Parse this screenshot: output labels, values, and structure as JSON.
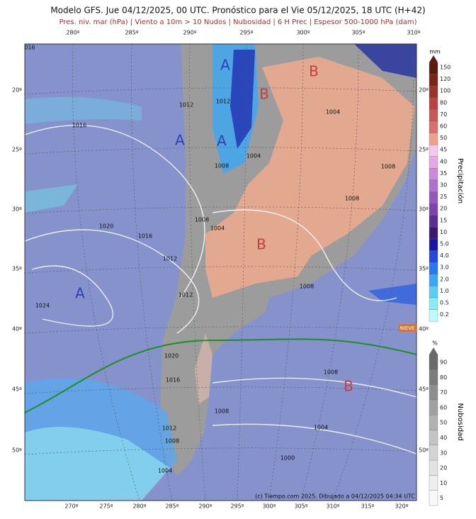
{
  "header": {
    "title": "Modelo GFS. Jue 04/12/2025, 00 UTC. Pronóstico para el Vie 05/12/2025, 18 UTC (H+42)",
    "subtitle": "Pres. niv. mar (hPa) | Viento a 10m > 10 Nudos | Nubosidad | 6 H Prec | Espesor 500-1000 hPa (dam)"
  },
  "map": {
    "lon_top": [
      "280º",
      "285º",
      "290º",
      "295º",
      "300º",
      "305º",
      "310º"
    ],
    "lon_bottom": [
      "270º",
      "275º",
      "280º",
      "285º",
      "290º",
      "295º",
      "300º",
      "305º",
      "310º",
      "315º",
      "320º"
    ],
    "lat_left": [
      "20º",
      "25º",
      "30º",
      "35º",
      "40º",
      "45º",
      "50º"
    ],
    "lat_right": [
      "20º",
      "25º",
      "30º",
      "35º",
      "40º",
      "45º",
      "50º"
    ],
    "centers": [
      "A",
      "B",
      "B",
      "A",
      "A",
      "B",
      "A",
      "B"
    ],
    "isobars": [
      "1012",
      "1012",
      "1004",
      "1016",
      "1004",
      "1008",
      "1008",
      "1008",
      "1020",
      "1016",
      "1008",
      "1004",
      "1012",
      "1012",
      "1008",
      "1024",
      "1020",
      "1016",
      "1008",
      "1008",
      "1004",
      "1012",
      "1008",
      "1000",
      "1004",
      "016"
    ],
    "tag": "NIEVE",
    "credit": "(c) Tiempo.com 2025. Dibujado a 04/12/2025 04:34 UTC"
  },
  "precip_legend": {
    "unit": "mm",
    "title": "Precipitación",
    "labels": [
      "150",
      "120",
      "100",
      "80",
      "70",
      "60",
      "50",
      "45",
      "40",
      "35",
      "30",
      "25",
      "20",
      "15",
      "10",
      "5.0",
      "4.0",
      "3.0",
      "2.0",
      "1.0",
      "0.5",
      "0.2"
    ]
  },
  "cloud_legend": {
    "unit": "%",
    "title": "Nubosidad",
    "labels": [
      "90",
      "80",
      "70",
      "60",
      "50",
      "40",
      "30",
      "20",
      "10",
      "5"
    ]
  }
}
